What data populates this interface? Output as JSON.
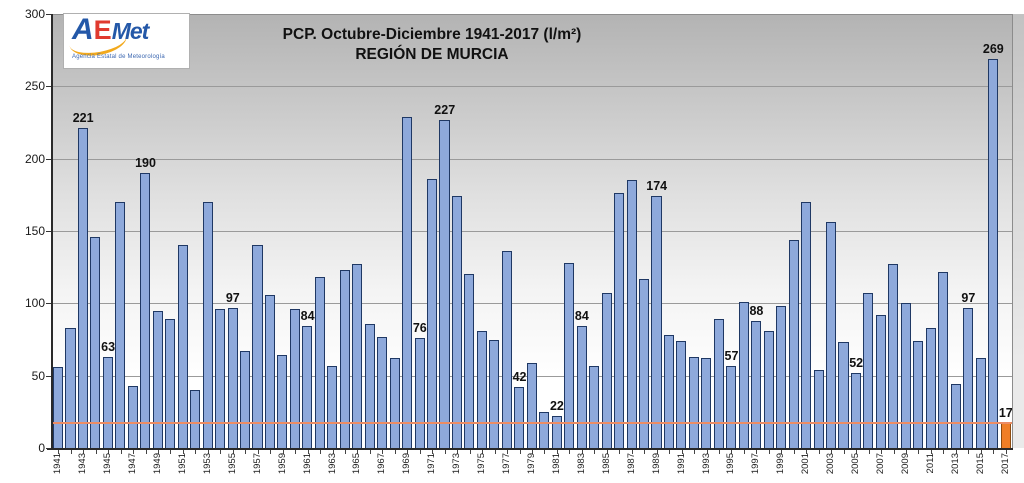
{
  "title": {
    "line1": "PCP. Octubre-Diciembre 1941-2017 (l/m²)",
    "line2": "REGIÓN DE MURCIA"
  },
  "logo": {
    "a": "A",
    "e": "E",
    "met": "Met",
    "caption": "Agencia Estatal de Meteorología"
  },
  "chart_data": {
    "type": "bar",
    "title": "PCP. Octubre-Diciembre 1941-2017 (l/m²)",
    "subtitle": "REGIÓN DE MURCIA",
    "ylim": [
      0,
      300
    ],
    "y_ticks": [
      0,
      50,
      100,
      150,
      200,
      250,
      300
    ],
    "x_label_interval": 2,
    "grid": true,
    "years": [
      1941,
      1942,
      1943,
      1944,
      1945,
      1946,
      1947,
      1948,
      1949,
      1950,
      1951,
      1952,
      1953,
      1954,
      1955,
      1956,
      1957,
      1958,
      1959,
      1960,
      1961,
      1962,
      1963,
      1964,
      1965,
      1966,
      1967,
      1968,
      1969,
      1970,
      1971,
      1972,
      1973,
      1974,
      1975,
      1976,
      1977,
      1978,
      1979,
      1980,
      1981,
      1982,
      1983,
      1984,
      1985,
      1986,
      1987,
      1988,
      1989,
      1990,
      1991,
      1992,
      1993,
      1994,
      1995,
      1996,
      1997,
      1998,
      1999,
      2000,
      2001,
      2002,
      2003,
      2004,
      2005,
      2006,
      2007,
      2008,
      2009,
      2010,
      2011,
      2012,
      2013,
      2014,
      2015,
      2016,
      2017
    ],
    "values": [
      56,
      83,
      221,
      146,
      63,
      170,
      43,
      190,
      95,
      89,
      140,
      40,
      170,
      96,
      97,
      67,
      140,
      106,
      64,
      96,
      84,
      118,
      57,
      123,
      127,
      86,
      77,
      62,
      229,
      76,
      186,
      227,
      174,
      120,
      81,
      75,
      136,
      42,
      59,
      25,
      22,
      128,
      84,
      57,
      107,
      176,
      185,
      117,
      174,
      78,
      74,
      63,
      62,
      89,
      57,
      101,
      88,
      81,
      98,
      144,
      170,
      54,
      156,
      73,
      52,
      107,
      92,
      127,
      100,
      74,
      83,
      122,
      44,
      97,
      62,
      269,
      17
    ],
    "labeled_values": {
      "1943": "221",
      "1945": "63",
      "1948": "190",
      "1955": "97",
      "1961": "84",
      "1970": "76",
      "1972": "227",
      "1978": "42",
      "1981": "22",
      "1983": "84",
      "1989": "174",
      "1995": "57",
      "1997": "88",
      "2005": "52",
      "2014": "97",
      "2016": "269",
      "2017": "17"
    },
    "highlight_year": 2017,
    "threshold_line": {
      "value": 17,
      "color": "#EC8C64"
    },
    "colors": {
      "bar_fill": "#8EA9DB",
      "bar_border": "#1F3864",
      "highlight_fill": "#F07E26",
      "highlight_border": "#8C4A0E"
    }
  }
}
